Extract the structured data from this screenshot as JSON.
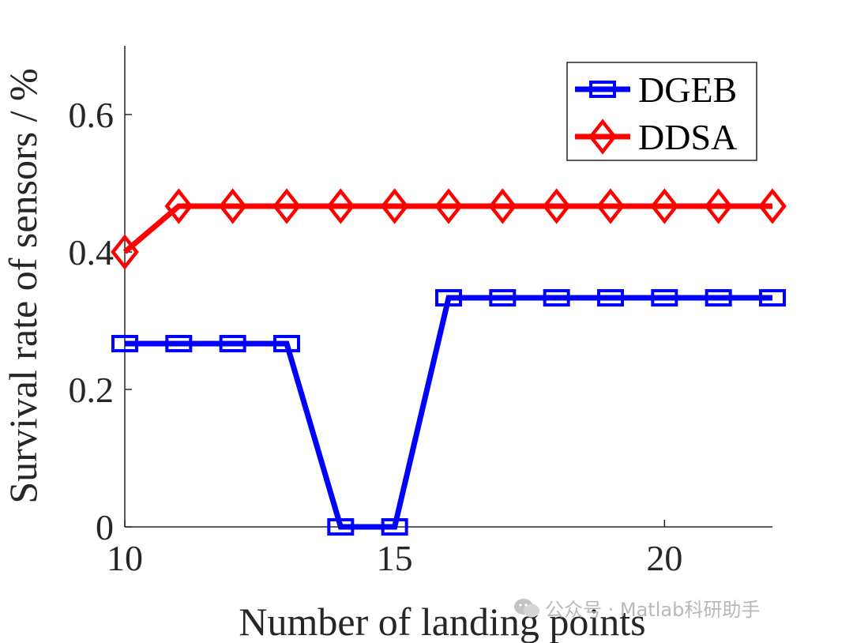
{
  "chart_data": {
    "type": "line",
    "x": [
      10,
      11,
      12,
      13,
      14,
      15,
      16,
      17,
      18,
      19,
      20,
      21,
      22
    ],
    "series": [
      {
        "name": "DGEB",
        "color": "#0000ff",
        "marker": "square",
        "values": [
          0.2667,
          0.2667,
          0.2667,
          0.2667,
          0,
          0,
          0.3333,
          0.3333,
          0.3333,
          0.3333,
          0.3333,
          0.3333,
          0.3333
        ]
      },
      {
        "name": "DDSA",
        "color": "#ff0000",
        "marker": "diamond",
        "values": [
          0.4,
          0.4667,
          0.4667,
          0.4667,
          0.4667,
          0.4667,
          0.4667,
          0.4667,
          0.4667,
          0.4667,
          0.4667,
          0.4667,
          0.4667
        ]
      }
    ],
    "xlabel": "Number of landing points",
    "ylabel": "Survival rate of sensors / %",
    "xlim": [
      10,
      22
    ],
    "ylim": [
      0,
      0.7
    ],
    "xticks": [
      10,
      15,
      20
    ],
    "yticks": [
      0,
      0.2,
      0.4,
      0.6
    ],
    "xtick_labels": [
      "10",
      "15",
      "20"
    ],
    "ytick_labels": [
      "0",
      "0.2",
      "0.4",
      "0.6"
    ],
    "grid": false,
    "legend_position": "top-right"
  },
  "watermark": {
    "text": "公众号 · Matlab科研助手",
    "icon": "wechat-icon"
  }
}
